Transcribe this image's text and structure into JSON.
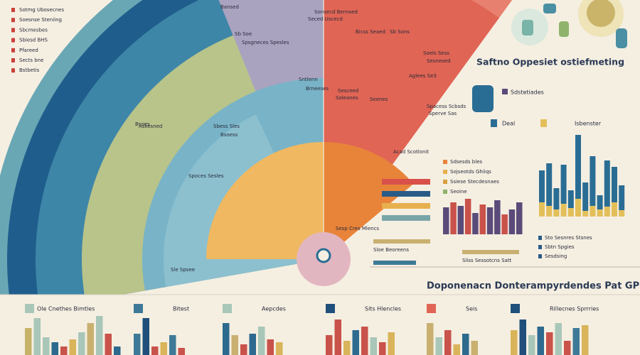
{
  "left_legend": [
    "Sotmg Ubosecnes",
    "Soesnse Steniing",
    "Sbcmesbes",
    "Sbiesd BHS",
    "Pfareed",
    "Sects bne",
    "Bstbetis"
  ],
  "fan_labels": [
    "Sonsecd Bernaed",
    "Seced Uscecd",
    "Bansed",
    "Sb Soe",
    "Spsgneces Spesles",
    "Sntlenn",
    "Brneeses",
    "Sesceed",
    "Soleanes",
    "Seenes",
    "Bicss Seaed",
    "Sb Sons",
    "Soels Sess",
    "Sesnesed",
    "Aglees Se3",
    "Spacess Scbsds",
    "Sperve Sas",
    "Bsoes",
    "Askesned",
    "Sbess Sles",
    "Bsoess",
    "Spoces Sesles",
    "Sle Spsee"
  ],
  "side_list": [
    "Acad Scotlonit",
    "Sdsesds bles",
    "Sojseotds Ghiiqs",
    "Ssiese Stecdesnaes",
    "Seoine"
  ],
  "side_notes": [
    "Sesp Cres Mlencs",
    "Sloe Beoreens",
    "Sliss Sessotcns Satt"
  ],
  "bar_rows": {
    "values": [
      68,
      68,
      68,
      68
    ],
    "colors": [
      "#d9504a",
      "#2a5b86",
      "#e7b04e",
      "#7aa5a8"
    ]
  },
  "right_title": "Saftno Oppesiet ostiefmeting",
  "right_caption": "Sdstetiades",
  "right_chart": {
    "series": [
      {
        "name": "Deal",
        "color": "#2a6d94",
        "values": [
          45,
          60,
          30,
          55,
          25,
          90,
          40,
          70,
          20,
          65,
          50,
          35
        ]
      },
      {
        "name": "Isbenster",
        "color": "#e3bf5a",
        "values": [
          20,
          15,
          10,
          18,
          12,
          25,
          8,
          15,
          10,
          14,
          20,
          9
        ]
      }
    ],
    "notes": [
      "Sto Sesnres Stsnes",
      "Sbtn Spgies",
      "Sesdsing"
    ]
  },
  "middle_chart": {
    "values": [
      38,
      45,
      40,
      50,
      30,
      42,
      38,
      48,
      28,
      35,
      45
    ],
    "colors": [
      "#5a4b7a",
      "#c9524a",
      "#5a4b7a",
      "#c9524a",
      "#5a4b7a",
      "#c9524a",
      "#5a4b7a",
      "#5a4b7a",
      "#c9524a",
      "#5a4b7a",
      "#5a4b7a"
    ]
  },
  "heading": "Doponenacn Donterampyrdendes Pat GPS",
  "bottom_charts": [
    {
      "label": "Ole Cnethes Bimtles",
      "color": "#a8c7b8",
      "values": [
        38,
        52,
        25,
        18,
        12,
        22,
        32,
        45,
        55,
        30,
        12
      ],
      "colors": [
        "#c7b26a",
        "#a8c7b8",
        "#a8c7b8",
        "#2d6a8e",
        "#c9524a",
        "#d9b45a",
        "#a8c7b8",
        "#c9b070",
        "#a8c7b8",
        "#c9524a",
        "#2d6a8e"
      ]
    },
    {
      "label": "Bitest",
      "color": "#3e7a97",
      "values": [
        30,
        52,
        12,
        18,
        28,
        10
      ],
      "colors": [
        "#3e7a97",
        "#1f4f7a",
        "#c9524a",
        "#d9b45a",
        "#3e7a97",
        "#c9524a"
      ]
    },
    {
      "label": "Aepcdes",
      "color": "#a8c7b8",
      "values": [
        45,
        28,
        15,
        30,
        40,
        22,
        18
      ],
      "colors": [
        "#2d6a8e",
        "#c9b070",
        "#c9524a",
        "#2d6a8e",
        "#a8c7b8",
        "#c9524a",
        "#d9b45a"
      ]
    },
    {
      "label": "Sits Hlencles",
      "color": "#1f4f7a",
      "values": [
        28,
        50,
        20,
        35,
        40,
        25,
        18,
        32
      ],
      "colors": [
        "#c9524a",
        "#c9524a",
        "#d9b45a",
        "#2d6a8e",
        "#c9524a",
        "#a8c7b8",
        "#c9524a",
        "#d9b45a"
      ]
    },
    {
      "label": "Seis",
      "color": "#e06555",
      "values": [
        45,
        25,
        35,
        15,
        30,
        20
      ],
      "colors": [
        "#c9b070",
        "#a8c7b8",
        "#c9524a",
        "#d9b45a",
        "#2d6a8e",
        "#c9b070"
      ]
    },
    {
      "label": "Rillecnes Sprrries",
      "color": "#1f4f7a",
      "values": [
        35,
        50,
        28,
        40,
        32,
        45,
        20,
        38,
        42
      ],
      "colors": [
        "#d9b45a",
        "#1f4f7a",
        "#a8c7b8",
        "#2d6a8e",
        "#c9524a",
        "#a8c7b8",
        "#c9524a",
        "#3e7a97",
        "#d9b45a"
      ]
    }
  ]
}
